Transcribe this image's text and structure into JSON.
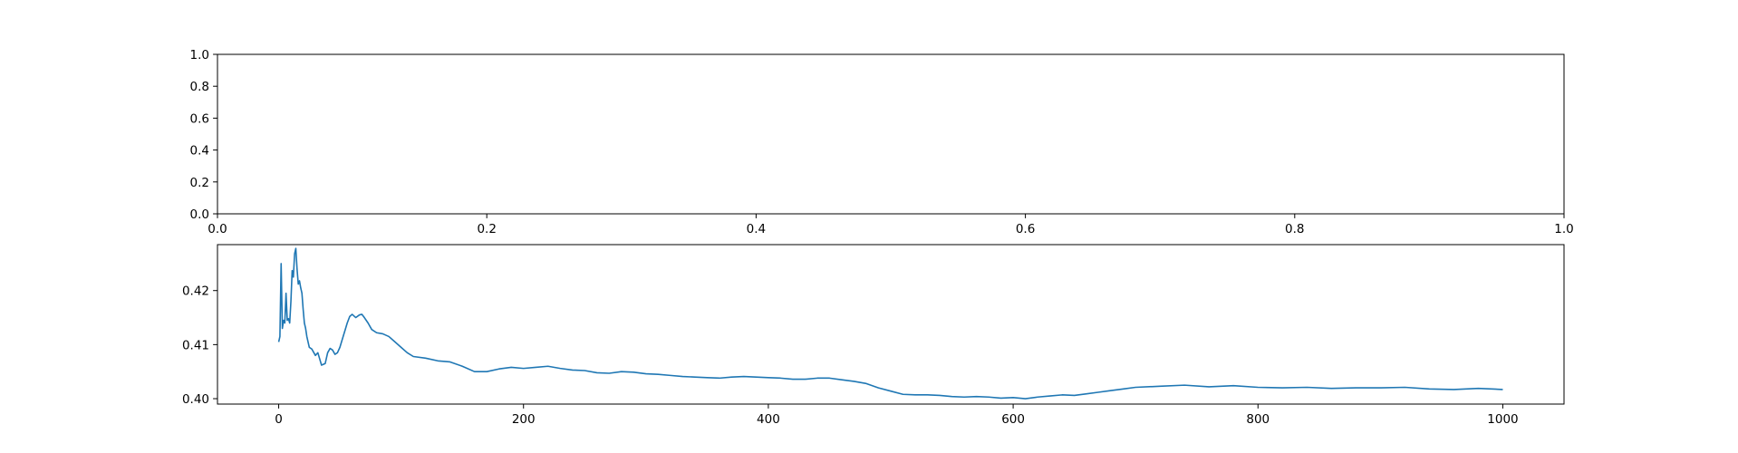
{
  "chart_data": [
    {
      "type": "line",
      "title": "",
      "xlabel": "",
      "ylabel": "",
      "xlim": [
        0.0,
        1.0
      ],
      "ylim": [
        0.0,
        1.0
      ],
      "grid": false,
      "x_ticks": [
        "0.0",
        "0.2",
        "0.4",
        "0.6",
        "0.8",
        "1.0"
      ],
      "y_ticks": [
        "0.0",
        "0.2",
        "0.4",
        "0.6",
        "0.8",
        "1.0"
      ],
      "series": []
    },
    {
      "type": "line",
      "title": "",
      "xlabel": "",
      "ylabel": "",
      "xlim": [
        -50,
        1050
      ],
      "ylim": [
        0.399,
        0.4285
      ],
      "grid": false,
      "x_ticks": [
        "0",
        "200",
        "400",
        "600",
        "800",
        "1000"
      ],
      "y_ticks": [
        "0.40",
        "0.41",
        "0.42"
      ],
      "line_color": "#1f77b4",
      "series": [
        {
          "x": [
            0,
            1,
            2,
            3,
            4,
            5,
            6,
            7,
            8,
            9,
            10,
            11,
            12,
            13,
            14,
            15,
            16,
            17,
            18,
            19,
            20,
            21,
            22,
            23,
            24,
            25,
            27,
            30,
            32,
            35,
            38,
            40,
            42,
            44,
            46,
            48,
            50,
            52,
            54,
            56,
            58,
            60,
            63,
            66,
            68,
            70,
            73,
            76,
            80,
            85,
            90,
            95,
            100,
            105,
            110,
            120,
            130,
            140,
            150,
            160,
            170,
            180,
            190,
            200,
            210,
            220,
            230,
            240,
            250,
            260,
            270,
            280,
            290,
            300,
            310,
            320,
            330,
            340,
            350,
            360,
            370,
            380,
            390,
            400,
            410,
            420,
            430,
            440,
            450,
            460,
            470,
            480,
            490,
            500,
            510,
            520,
            530,
            540,
            550,
            560,
            570,
            580,
            590,
            600,
            610,
            620,
            630,
            640,
            650,
            660,
            670,
            680,
            690,
            700,
            720,
            740,
            760,
            780,
            800,
            820,
            840,
            860,
            880,
            900,
            920,
            940,
            960,
            980,
            1000
          ],
          "y": [
            0.4105,
            0.4115,
            0.425,
            0.413,
            0.4145,
            0.414,
            0.4195,
            0.4145,
            0.4148,
            0.414,
            0.418,
            0.4237,
            0.4225,
            0.4268,
            0.4278,
            0.424,
            0.4212,
            0.4218,
            0.4205,
            0.4195,
            0.4165,
            0.414,
            0.413,
            0.4115,
            0.4105,
            0.4095,
            0.4092,
            0.408,
            0.4085,
            0.4062,
            0.4065,
            0.4085,
            0.4093,
            0.409,
            0.4082,
            0.4085,
            0.4095,
            0.411,
            0.4125,
            0.414,
            0.4152,
            0.4156,
            0.415,
            0.4155,
            0.4156,
            0.415,
            0.414,
            0.4128,
            0.4122,
            0.412,
            0.4115,
            0.4105,
            0.4095,
            0.4085,
            0.4078,
            0.4075,
            0.407,
            0.4068,
            0.406,
            0.405,
            0.405,
            0.4055,
            0.4058,
            0.4056,
            0.4058,
            0.406,
            0.4056,
            0.4053,
            0.4052,
            0.4048,
            0.4047,
            0.405,
            0.4049,
            0.4046,
            0.4045,
            0.4043,
            0.4041,
            0.404,
            0.4039,
            0.4038,
            0.404,
            0.4041,
            0.404,
            0.4039,
            0.4038,
            0.4036,
            0.4036,
            0.4038,
            0.4038,
            0.4035,
            0.4032,
            0.4028,
            0.402,
            0.4014,
            0.4008,
            0.4007,
            0.4007,
            0.4006,
            0.4004,
            0.4003,
            0.4004,
            0.4003,
            0.4001,
            0.4002,
            0.4,
            0.4003,
            0.4005,
            0.4007,
            0.4006,
            0.4009,
            0.4012,
            0.4015,
            0.4018,
            0.4021,
            0.4023,
            0.4025,
            0.4022,
            0.4024,
            0.4021,
            0.402,
            0.4021,
            0.4019,
            0.402,
            0.402,
            0.4021,
            0.4018,
            0.4017,
            0.4019,
            0.4017
          ]
        }
      ]
    }
  ]
}
